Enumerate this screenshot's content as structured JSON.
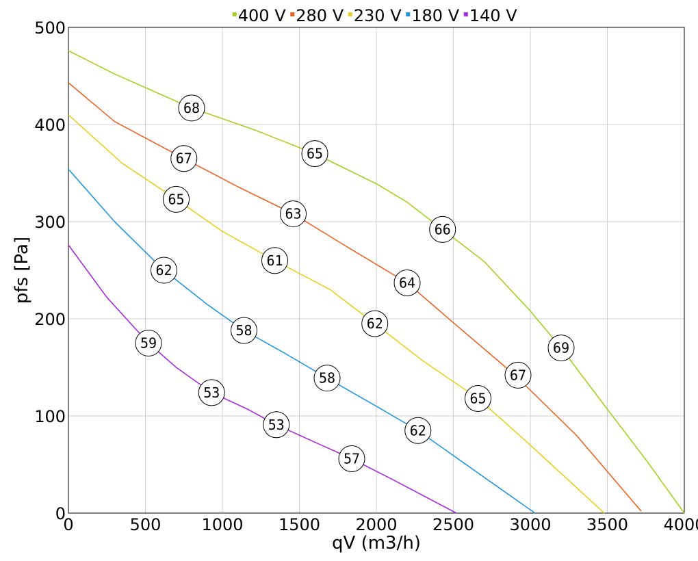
{
  "chart_data": {
    "type": "line",
    "xlabel": "qV (m3/h)",
    "ylabel": "pfs [Pa]",
    "xlim": [
      0,
      4000
    ],
    "ylim": [
      0,
      500
    ],
    "xticks": [
      0,
      500,
      1000,
      1500,
      2000,
      2500,
      3000,
      3500,
      4000
    ],
    "yticks": [
      0,
      100,
      200,
      300,
      400,
      500
    ],
    "grid": true,
    "legend_position": "top-center",
    "series": [
      {
        "name": "400 V",
        "color": "#a6cd2a",
        "points": [
          [
            0,
            476
          ],
          [
            300,
            452
          ],
          [
            800,
            417
          ],
          [
            1200,
            395
          ],
          [
            1600,
            370
          ],
          [
            2000,
            339
          ],
          [
            2200,
            320
          ],
          [
            2430,
            292
          ],
          [
            2700,
            259
          ],
          [
            3000,
            208
          ],
          [
            3200,
            170
          ],
          [
            3500,
            107
          ],
          [
            3750,
            55
          ],
          [
            4000,
            0
          ]
        ],
        "markers": [
          {
            "x": 800,
            "y": 417,
            "label": "68"
          },
          {
            "x": 1600,
            "y": 370,
            "label": "65"
          },
          {
            "x": 2430,
            "y": 292,
            "label": "66"
          },
          {
            "x": 3200,
            "y": 170,
            "label": "69"
          }
        ]
      },
      {
        "name": "280 V",
        "color": "#e0662a",
        "points": [
          [
            0,
            443
          ],
          [
            300,
            403
          ],
          [
            750,
            365
          ],
          [
            1100,
            336
          ],
          [
            1460,
            308
          ],
          [
            1800,
            275
          ],
          [
            2200,
            237
          ],
          [
            2500,
            196
          ],
          [
            2900,
            142
          ],
          [
            3300,
            80
          ],
          [
            3720,
            2
          ]
        ],
        "markers": [
          {
            "x": 750,
            "y": 365,
            "label": "67"
          },
          {
            "x": 1460,
            "y": 308,
            "label": "63"
          },
          {
            "x": 2200,
            "y": 237,
            "label": "64"
          },
          {
            "x": 2920,
            "y": 142,
            "label": "67"
          }
        ]
      },
      {
        "name": "230 V",
        "color": "#e2d12a",
        "points": [
          [
            0,
            410
          ],
          [
            350,
            360
          ],
          [
            700,
            323
          ],
          [
            1000,
            290
          ],
          [
            1340,
            260
          ],
          [
            1700,
            230
          ],
          [
            1990,
            195
          ],
          [
            2300,
            157
          ],
          [
            2660,
            118
          ],
          [
            3000,
            70
          ],
          [
            3480,
            0
          ]
        ],
        "markers": [
          {
            "x": 700,
            "y": 323,
            "label": "65"
          },
          {
            "x": 1340,
            "y": 260,
            "label": "61"
          },
          {
            "x": 1990,
            "y": 195,
            "label": "62"
          },
          {
            "x": 2660,
            "y": 118,
            "label": "65"
          }
        ]
      },
      {
        "name": "180 V",
        "color": "#2796d8",
        "points": [
          [
            0,
            354
          ],
          [
            300,
            300
          ],
          [
            620,
            250
          ],
          [
            900,
            215
          ],
          [
            1140,
            188
          ],
          [
            1400,
            165
          ],
          [
            1680,
            139
          ],
          [
            2000,
            110
          ],
          [
            2270,
            85
          ],
          [
            2600,
            48
          ],
          [
            3030,
            0
          ]
        ],
        "markers": [
          {
            "x": 620,
            "y": 250,
            "label": "62"
          },
          {
            "x": 1140,
            "y": 188,
            "label": "58"
          },
          {
            "x": 1680,
            "y": 139,
            "label": "58"
          },
          {
            "x": 2270,
            "y": 85,
            "label": "62"
          }
        ]
      },
      {
        "name": "140 V",
        "color": "#a12ed6",
        "points": [
          [
            0,
            276
          ],
          [
            250,
            222
          ],
          [
            520,
            175
          ],
          [
            700,
            150
          ],
          [
            930,
            124
          ],
          [
            1150,
            108
          ],
          [
            1350,
            91
          ],
          [
            1600,
            73
          ],
          [
            1840,
            56
          ],
          [
            2100,
            35
          ],
          [
            2520,
            0
          ]
        ],
        "markers": [
          {
            "x": 520,
            "y": 175,
            "label": "59"
          },
          {
            "x": 930,
            "y": 124,
            "label": "53"
          },
          {
            "x": 1350,
            "y": 91,
            "label": "53"
          },
          {
            "x": 1840,
            "y": 56,
            "label": "57"
          }
        ]
      }
    ]
  }
}
